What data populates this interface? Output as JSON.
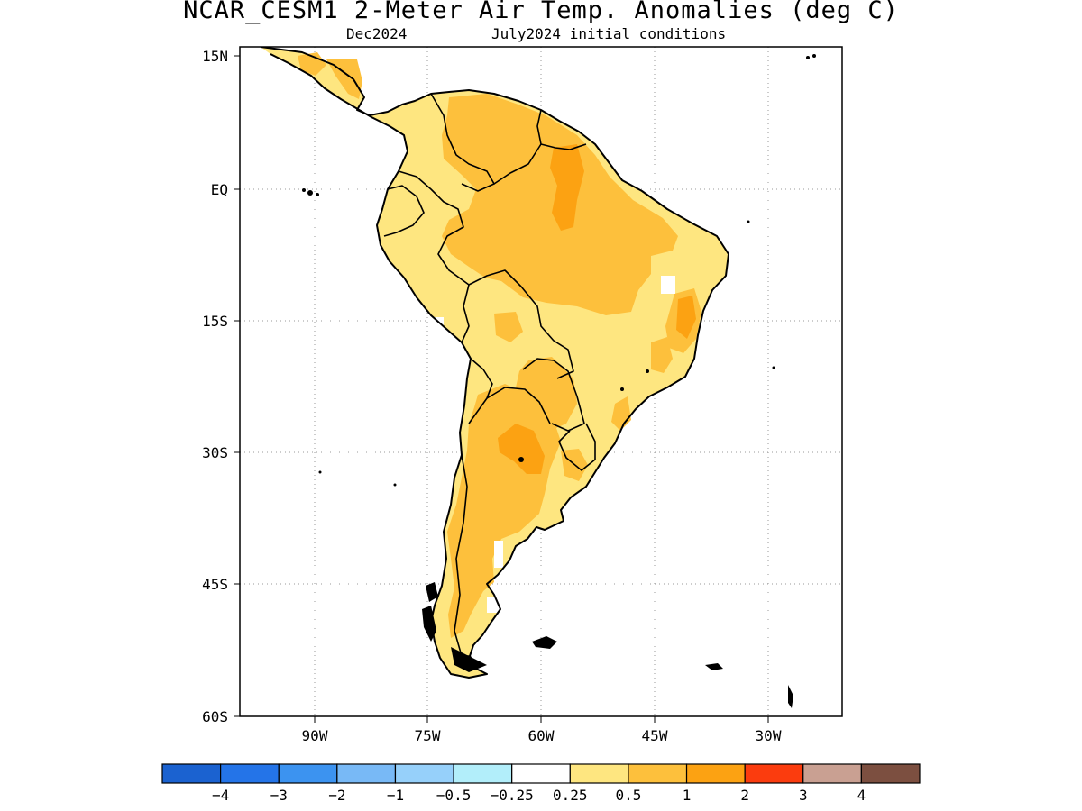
{
  "header": {
    "title": "NCAR_CESM1 2-Meter Air Temp. Anomalies (deg C)",
    "valid_month": "Dec2024",
    "init_conditions": "July2024 initial conditions"
  },
  "map": {
    "y_ticks": [
      "15N",
      "EQ",
      "15S",
      "30S",
      "45S",
      "60S"
    ],
    "x_ticks": [
      "90W",
      "75W",
      "60W",
      "45W",
      "30W"
    ]
  },
  "colorbar": {
    "colors": [
      "#1b62d0",
      "#2474e8",
      "#3c93f0",
      "#78b9f6",
      "#96d0fa",
      "#b2eefa",
      "#ffffff",
      "#fee680",
      "#fdc03c",
      "#fca212",
      "#fb3c0e",
      "#c9a092",
      "#7c4f40"
    ],
    "labels": [
      "-4",
      "-3",
      "-2",
      "-1",
      "-0.5",
      "-0.25",
      "0.25",
      "0.5",
      "1",
      "2",
      "3",
      "4"
    ]
  }
}
